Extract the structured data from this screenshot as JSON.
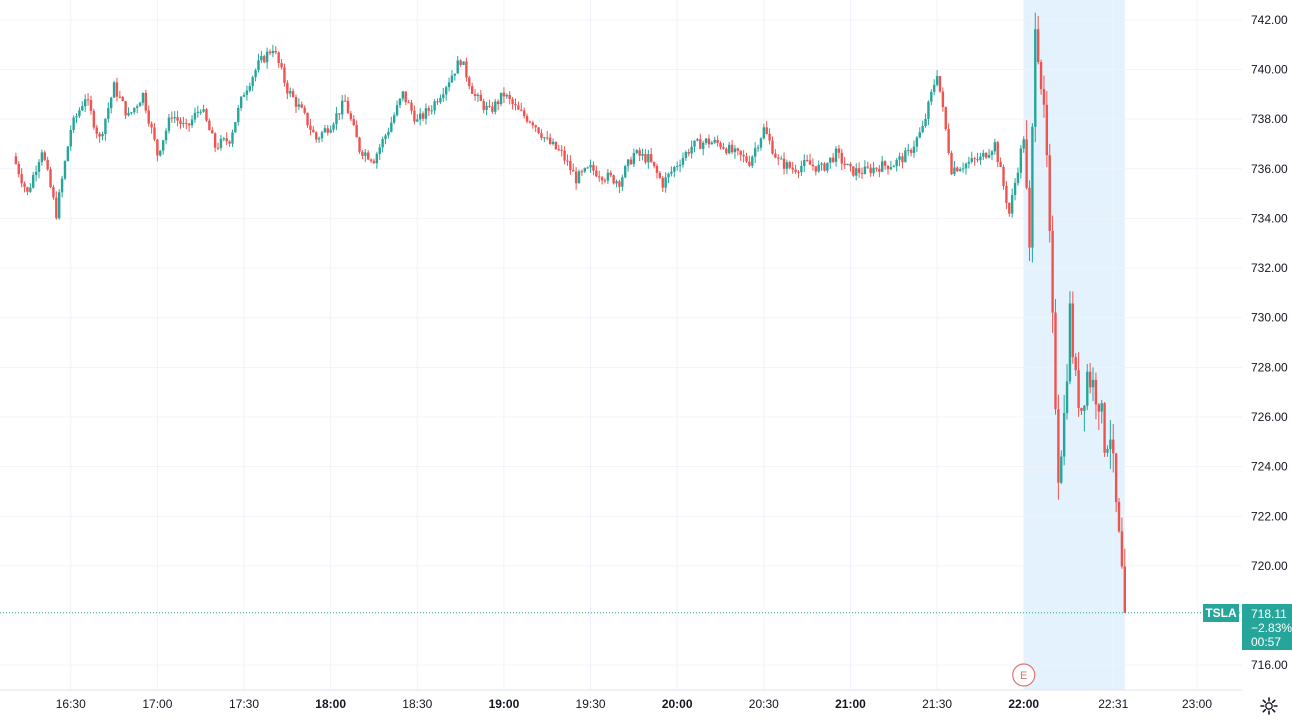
{
  "chart_data": {
    "type": "candlestick",
    "symbol": "TSLA",
    "last_price": 718.11,
    "change_percent": "−2.83%",
    "countdown": "00:57",
    "ylim": [
      715.0,
      742.8
    ],
    "y_ticks": [
      "742.00",
      "740.00",
      "738.00",
      "736.00",
      "734.00",
      "732.00",
      "730.00",
      "728.00",
      "726.00",
      "724.00",
      "722.00",
      "720.00",
      "716.00"
    ],
    "y_tick_values": [
      742,
      740,
      738,
      736,
      734,
      732,
      730,
      728,
      726,
      724,
      722,
      720,
      716
    ],
    "x_ticks": [
      {
        "label": "16:30",
        "time": "16:30"
      },
      {
        "label": "17:00",
        "time": "17:00"
      },
      {
        "label": "17:30",
        "time": "17:30"
      },
      {
        "label": "18:00",
        "time": "18:00",
        "bold": true
      },
      {
        "label": "18:30",
        "time": "18:30"
      },
      {
        "label": "19:00",
        "time": "19:00",
        "bold": true
      },
      {
        "label": "19:30",
        "time": "19:30"
      },
      {
        "label": "20:00",
        "time": "20:00",
        "bold": true
      },
      {
        "label": "20:30",
        "time": "20:30"
      },
      {
        "label": "21:00",
        "time": "21:00",
        "bold": true
      },
      {
        "label": "21:30",
        "time": "21:30"
      },
      {
        "label": "22:00",
        "time": "22:00",
        "bold": true
      },
      {
        "label": "22:31",
        "time": "22:31"
      },
      {
        "label": "23:00",
        "time": "23:00"
      }
    ],
    "highlight_session": {
      "start": "22:00",
      "end": "22:35"
    },
    "earnings_marker": {
      "label": "E",
      "time": "22:00"
    },
    "grid": true,
    "colors": {
      "up": "#26a69a",
      "down": "#ef5350",
      "highlight": "#e3f2fd",
      "grid": "#f0f3fa",
      "price_line": "#26a69a",
      "marker": "#e57373"
    },
    "series_anchor_closes": [
      [
        "16:10",
        736.5
      ],
      [
        "16:15",
        735.0
      ],
      [
        "16:20",
        736.8
      ],
      [
        "16:25",
        734.2
      ],
      [
        "16:30",
        737.6
      ],
      [
        "16:35",
        738.9
      ],
      [
        "16:40",
        737.2
      ],
      [
        "16:45",
        739.3
      ],
      [
        "16:50",
        738.1
      ],
      [
        "16:55",
        739.0
      ],
      [
        "17:00",
        736.6
      ],
      [
        "17:05",
        738.2
      ],
      [
        "17:10",
        737.6
      ],
      [
        "17:15",
        738.5
      ],
      [
        "17:20",
        736.9
      ],
      [
        "17:25",
        737.2
      ],
      [
        "17:30",
        739.1
      ],
      [
        "17:35",
        740.2
      ],
      [
        "17:40",
        740.9
      ],
      [
        "17:45",
        739.2
      ],
      [
        "17:50",
        738.3
      ],
      [
        "17:55",
        737.2
      ],
      [
        "18:00",
        737.8
      ],
      [
        "18:05",
        738.7
      ],
      [
        "18:10",
        736.8
      ],
      [
        "18:15",
        736.4
      ],
      [
        "18:20",
        737.6
      ],
      [
        "18:25",
        739.0
      ],
      [
        "18:30",
        737.9
      ],
      [
        "18:35",
        738.5
      ],
      [
        "18:40",
        739.4
      ],
      [
        "18:45",
        740.4
      ],
      [
        "18:50",
        738.9
      ],
      [
        "18:55",
        738.3
      ],
      [
        "19:00",
        739.0
      ],
      [
        "19:05",
        738.3
      ],
      [
        "19:10",
        737.9
      ],
      [
        "19:15",
        737.1
      ],
      [
        "19:20",
        736.6
      ],
      [
        "19:25",
        735.6
      ],
      [
        "19:30",
        736.0
      ],
      [
        "19:35",
        735.7
      ],
      [
        "19:40",
        735.5
      ],
      [
        "19:45",
        736.6
      ],
      [
        "19:50",
        736.4
      ],
      [
        "19:55",
        735.4
      ],
      [
        "20:00",
        736.2
      ],
      [
        "20:05",
        736.9
      ],
      [
        "20:10",
        737.1
      ],
      [
        "20:15",
        737.0
      ],
      [
        "20:20",
        736.6
      ],
      [
        "20:25",
        736.3
      ],
      [
        "20:30",
        737.6
      ],
      [
        "20:35",
        736.3
      ],
      [
        "20:40",
        736.0
      ],
      [
        "20:45",
        736.2
      ],
      [
        "20:50",
        736.0
      ],
      [
        "20:55",
        736.6
      ],
      [
        "21:00",
        735.9
      ],
      [
        "21:05",
        735.9
      ],
      [
        "21:10",
        736.1
      ],
      [
        "21:15",
        736.2
      ],
      [
        "21:20",
        736.6
      ],
      [
        "21:25",
        737.6
      ],
      [
        "21:30",
        739.9
      ],
      [
        "21:35",
        736.0
      ],
      [
        "21:40",
        736.2
      ],
      [
        "21:45",
        736.4
      ],
      [
        "21:50",
        737.0
      ],
      [
        "21:55",
        734.2
      ],
      [
        "22:00",
        737.3
      ],
      [
        "22:02",
        732.4
      ],
      [
        "22:04",
        742.3
      ],
      [
        "22:06",
        739.6
      ],
      [
        "22:08",
        736.2
      ],
      [
        "22:10",
        729.6
      ],
      [
        "22:12",
        723.9
      ],
      [
        "22:14",
        726.0
      ],
      [
        "22:16",
        730.2
      ],
      [
        "22:18",
        727.3
      ],
      [
        "22:20",
        726.4
      ],
      [
        "22:22",
        727.8
      ],
      [
        "22:24",
        727.3
      ],
      [
        "22:26",
        726.8
      ],
      [
        "22:28",
        725.0
      ],
      [
        "22:30",
        725.4
      ],
      [
        "22:32",
        722.3
      ],
      [
        "22:34",
        719.6
      ],
      [
        "22:35",
        718.11
      ]
    ]
  }
}
